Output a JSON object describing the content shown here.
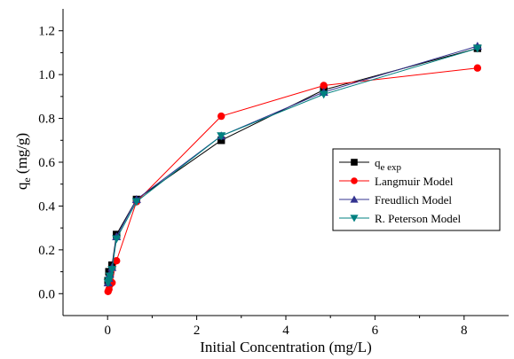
{
  "chart_data": {
    "type": "line",
    "xlabel": "Initial Concentration (mg/L)",
    "ylabel_main": "q",
    "ylabel_sub": "e",
    "ylabel_unit": " (mg/g)",
    "xlim": [
      -1,
      9
    ],
    "ylim": [
      -0.1,
      1.3
    ],
    "x_ticks": [
      0,
      2,
      4,
      6,
      8
    ],
    "x_tick_labels": [
      "0",
      "2",
      "4",
      "6",
      "8"
    ],
    "y_ticks": [
      0.0,
      0.2,
      0.4,
      0.6,
      0.8,
      1.0,
      1.2
    ],
    "y_tick_labels": [
      "0.0",
      "0.2",
      "0.4",
      "0.6",
      "0.8",
      "1.0",
      "1.2"
    ],
    "grid": false,
    "legend_position": "right",
    "series": [
      {
        "name_main": "q",
        "name_sub": "e exp",
        "color": "#000000",
        "marker": "square",
        "x": [
          0.01,
          0.03,
          0.05,
          0.1,
          0.2,
          0.65,
          2.55,
          4.85,
          8.3
        ],
        "y": [
          0.06,
          0.1,
          0.09,
          0.13,
          0.27,
          0.43,
          0.7,
          0.93,
          1.12
        ]
      },
      {
        "name": "Langmuir Model",
        "color": "#ff0000",
        "marker": "circle",
        "x": [
          0.01,
          0.03,
          0.05,
          0.1,
          0.2,
          0.65,
          2.55,
          4.85,
          8.3
        ],
        "y": [
          0.01,
          0.02,
          0.04,
          0.05,
          0.15,
          0.42,
          0.81,
          0.95,
          1.03
        ]
      },
      {
        "name": "Freudlich Model",
        "color": "#33338f",
        "marker": "triangle-up",
        "x": [
          0.01,
          0.03,
          0.05,
          0.1,
          0.2,
          0.65,
          2.55,
          4.85,
          8.3
        ],
        "y": [
          0.05,
          0.07,
          0.09,
          0.12,
          0.26,
          0.43,
          0.72,
          0.92,
          1.13
        ]
      },
      {
        "name": "R. Peterson Model",
        "color": "#008080",
        "marker": "triangle-down",
        "x": [
          0.01,
          0.03,
          0.05,
          0.1,
          0.2,
          0.65,
          2.55,
          4.85,
          8.3
        ],
        "y": [
          0.05,
          0.06,
          0.08,
          0.11,
          0.25,
          0.42,
          0.72,
          0.91,
          1.12
        ]
      }
    ]
  }
}
